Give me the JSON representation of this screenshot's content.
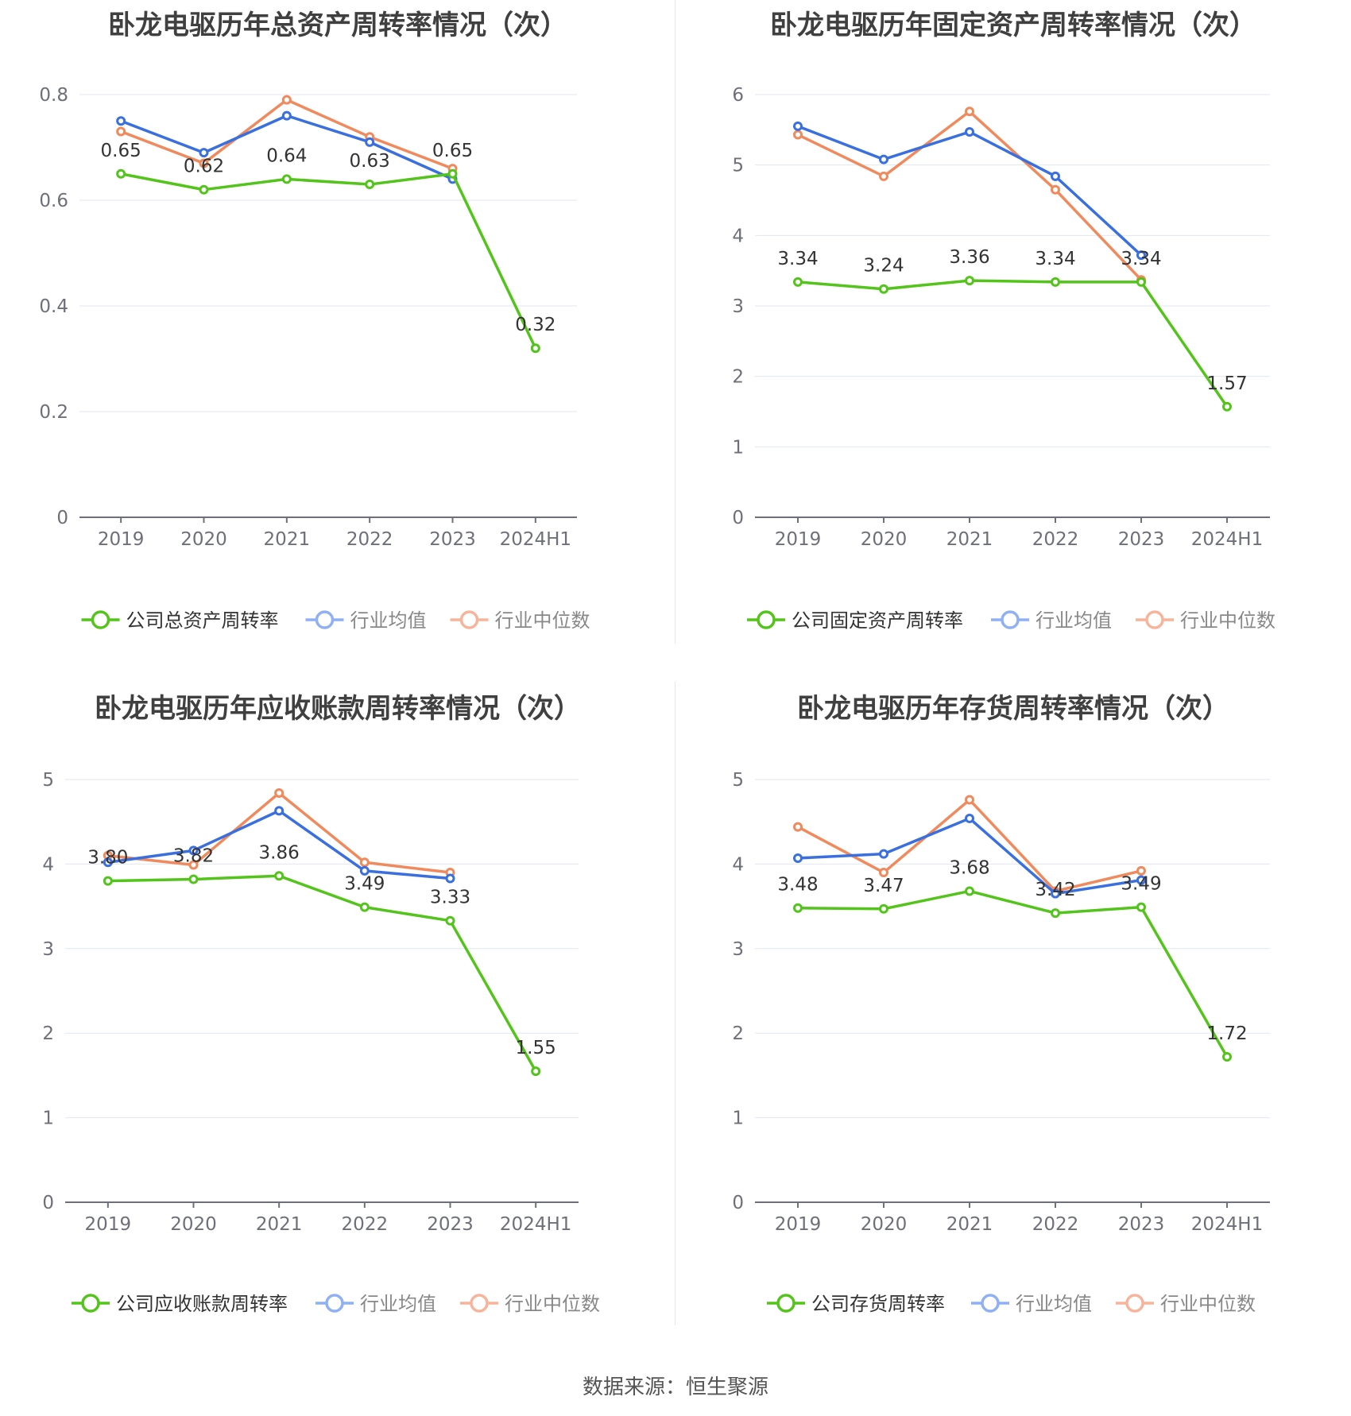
{
  "categories": [
    "2019",
    "2020",
    "2021",
    "2022",
    "2023",
    "2024H1"
  ],
  "colors": {
    "company": "#52c41a",
    "avg": "#3a6fe0",
    "median": "#f08a5d"
  },
  "source": "数据来源：恒生聚源",
  "chart_data": [
    {
      "type": "line",
      "title": "卧龙电驱历年总资产周转率情况（次）",
      "categories": [
        "2019",
        "2020",
        "2021",
        "2022",
        "2023",
        "2024H1"
      ],
      "ylim": [
        0,
        0.8
      ],
      "yticks": [
        0,
        0.2,
        0.4,
        0.6,
        0.8
      ],
      "ytick_labels": [
        "0",
        "0.2",
        "0.4",
        "0.6",
        "0.8"
      ],
      "legend": [
        "公司总资产周转率",
        "行业均值",
        "行业中位数"
      ],
      "label_values": [
        "0.65",
        "0.62",
        "0.64",
        "0.63",
        "0.65",
        "0.32"
      ],
      "series": [
        {
          "name": "公司总资产周转率",
          "values": [
            0.65,
            0.62,
            0.64,
            0.63,
            0.65,
            0.32
          ]
        },
        {
          "name": "行业均值",
          "values": [
            0.75,
            0.69,
            0.76,
            0.71,
            0.64,
            null
          ]
        },
        {
          "name": "行业中位数",
          "values": [
            0.73,
            0.67,
            0.79,
            0.72,
            0.66,
            null
          ]
        }
      ]
    },
    {
      "type": "line",
      "title": "卧龙电驱历年固定资产周转率情况（次）",
      "categories": [
        "2019",
        "2020",
        "2021",
        "2022",
        "2023",
        "2024H1"
      ],
      "ylim": [
        0,
        6
      ],
      "yticks": [
        0,
        1,
        2,
        3,
        4,
        5,
        6
      ],
      "ytick_labels": [
        "0",
        "1",
        "2",
        "3",
        "4",
        "5",
        "6"
      ],
      "legend": [
        "公司固定资产周转率",
        "行业均值",
        "行业中位数"
      ],
      "label_values": [
        "3.34",
        "3.24",
        "3.36",
        "3.34",
        "3.34",
        "1.57"
      ],
      "series": [
        {
          "name": "公司固定资产周转率",
          "values": [
            3.34,
            3.24,
            3.36,
            3.34,
            3.34,
            1.57
          ]
        },
        {
          "name": "行业均值",
          "values": [
            5.55,
            5.08,
            5.47,
            4.84,
            3.72,
            null
          ]
        },
        {
          "name": "行业中位数",
          "values": [
            5.43,
            4.84,
            5.76,
            4.65,
            3.37,
            null
          ]
        }
      ]
    },
    {
      "type": "line",
      "title": "卧龙电驱历年应收账款周转率情况（次）",
      "categories": [
        "2019",
        "2020",
        "2021",
        "2022",
        "2023",
        "2024H1"
      ],
      "ylim": [
        0,
        5
      ],
      "yticks": [
        0,
        1,
        2,
        3,
        4,
        5
      ],
      "ytick_labels": [
        "0",
        "1",
        "2",
        "3",
        "4",
        "5"
      ],
      "legend": [
        "公司应收账款周转率",
        "行业均值",
        "行业中位数"
      ],
      "label_values": [
        "3.80",
        "3.82",
        "3.86",
        "3.49",
        "3.33",
        "1.55"
      ],
      "series": [
        {
          "name": "公司应收账款周转率",
          "values": [
            3.8,
            3.82,
            3.86,
            3.49,
            3.33,
            1.55
          ]
        },
        {
          "name": "行业均值",
          "values": [
            4.02,
            4.16,
            4.63,
            3.92,
            3.83,
            null
          ]
        },
        {
          "name": "行业中位数",
          "values": [
            4.1,
            3.99,
            4.84,
            4.02,
            3.9,
            null
          ]
        }
      ]
    },
    {
      "type": "line",
      "title": "卧龙电驱历年存货周转率情况（次）",
      "categories": [
        "2019",
        "2020",
        "2021",
        "2022",
        "2023",
        "2024H1"
      ],
      "ylim": [
        0,
        5
      ],
      "yticks": [
        0,
        1,
        2,
        3,
        4,
        5
      ],
      "ytick_labels": [
        "0",
        "1",
        "2",
        "3",
        "4",
        "5"
      ],
      "legend": [
        "公司存货周转率",
        "行业均值",
        "行业中位数"
      ],
      "label_values": [
        "3.48",
        "3.47",
        "3.68",
        "3.42",
        "3.49",
        "1.72"
      ],
      "series": [
        {
          "name": "公司存货周转率",
          "values": [
            3.48,
            3.47,
            3.68,
            3.42,
            3.49,
            1.72
          ]
        },
        {
          "name": "行业均值",
          "values": [
            4.07,
            4.12,
            4.54,
            3.65,
            3.81,
            null
          ]
        },
        {
          "name": "行业中位数",
          "values": [
            4.44,
            3.9,
            4.76,
            3.68,
            3.92,
            null
          ]
        }
      ]
    }
  ]
}
